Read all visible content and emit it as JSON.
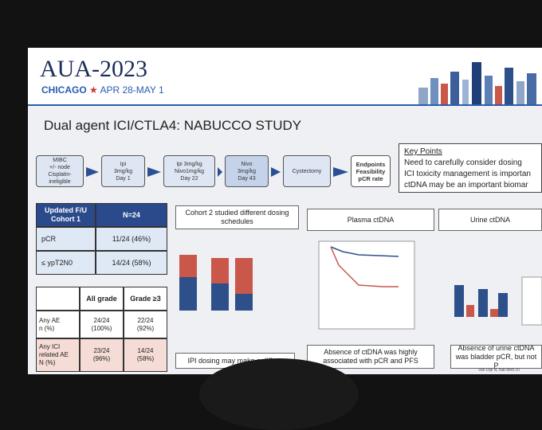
{
  "header": {
    "logo": "AUA",
    "year": "2023",
    "city": "CHICAGO",
    "dates": "APR 28-MAY 1"
  },
  "title": "Dual agent ICI/CTLA4: NABUCCO STUDY",
  "flow": [
    {
      "lines": [
        "MIBC",
        "+/- node",
        "Cisplatin-",
        "ineligible"
      ]
    },
    {
      "lines": [
        "Ipi",
        "3mg/kg",
        "Day 1"
      ]
    },
    {
      "lines": [
        "Ipi 3mg/kg",
        "Nivo1mg/kg",
        "Day 22"
      ]
    },
    {
      "lines": [
        "Nivo",
        "3mg/kg",
        "Day 43"
      ]
    },
    {
      "lines": [
        "Cystectomy"
      ]
    },
    {
      "lines": [
        "Endpoints",
        "Feasibility",
        "pCR rate"
      ]
    }
  ],
  "key_points": {
    "title": "Key Points",
    "lines": [
      "Need to carefully consider dosing",
      "ICI toxicity management is importan",
      "ctDNA may be an important biomar"
    ]
  },
  "table1": {
    "header": [
      [
        "Updated F/U",
        "Cohort 1"
      ],
      [
        "N=24"
      ]
    ],
    "rows": [
      [
        "pCR",
        "11/24 (46%)"
      ],
      [
        "≤ ypT2N0",
        "14/24 (58%)"
      ]
    ]
  },
  "table2": {
    "header": [
      "All grade",
      "Grade ≥3"
    ],
    "rows": [
      {
        "label": [
          "Any AE",
          "n (%)"
        ],
        "cells": [
          [
            "24/24",
            "(100%)"
          ],
          [
            "22/24",
            "(92%)"
          ]
        ]
      },
      {
        "label": [
          "Any ICI",
          "related AE",
          "N (%)"
        ],
        "cells": [
          [
            "23/24",
            "(96%)"
          ],
          [
            "14/24",
            "(58%)"
          ]
        ]
      }
    ]
  },
  "panels": [
    {
      "heading": "Cohort 2 studied different dosing schedules",
      "caption": "IPI dosing may make a differe"
    },
    {
      "heading": "Plasma ctDNA",
      "caption": "Absence of ctDNA was highly associated with pCR and PFS"
    },
    {
      "heading": "Urine ctDNA",
      "caption": "Absence of urine ctDNA was bladder pCR, but not P"
    }
  ],
  "footer": "Van Dijk N, Nat Med 20"
}
